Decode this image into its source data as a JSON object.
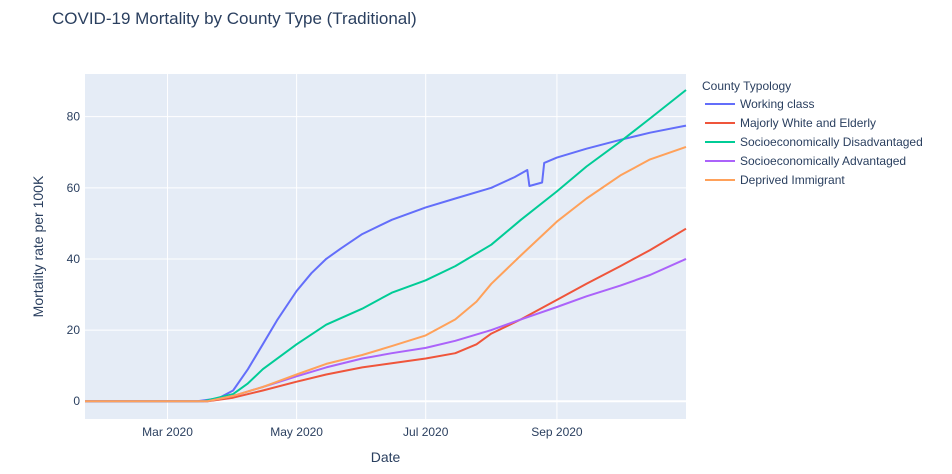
{
  "chart_data": {
    "type": "line",
    "title": "COVID-19 Mortality by County Type (Traditional)",
    "xlabel": "Date",
    "ylabel": "Mortality rate per 100K",
    "x_range": [
      "2020-01-22",
      "2020-11-01"
    ],
    "ylim": [
      -5,
      92
    ],
    "x_ticks": [
      {
        "date": "2020-03-01",
        "label": "Mar 2020"
      },
      {
        "date": "2020-05-01",
        "label": "May 2020"
      },
      {
        "date": "2020-07-01",
        "label": "Jul 2020"
      },
      {
        "date": "2020-09-01",
        "label": "Sep 2020"
      }
    ],
    "y_ticks": [
      0,
      20,
      40,
      60,
      80
    ],
    "grid": true,
    "legend": {
      "title": "County Typology",
      "placement": "right"
    },
    "series": [
      {
        "name": "Working class",
        "color": "#636efa",
        "points": [
          [
            "2020-01-22",
            0
          ],
          [
            "2020-03-15",
            0
          ],
          [
            "2020-03-25",
            0.8
          ],
          [
            "2020-04-01",
            3
          ],
          [
            "2020-04-08",
            9
          ],
          [
            "2020-04-15",
            16
          ],
          [
            "2020-04-22",
            23
          ],
          [
            "2020-05-01",
            31
          ],
          [
            "2020-05-08",
            36
          ],
          [
            "2020-05-15",
            40
          ],
          [
            "2020-05-22",
            43
          ],
          [
            "2020-06-01",
            47
          ],
          [
            "2020-06-15",
            51
          ],
          [
            "2020-07-01",
            54.5
          ],
          [
            "2020-07-15",
            57
          ],
          [
            "2020-08-01",
            60
          ],
          [
            "2020-08-12",
            63
          ],
          [
            "2020-08-18",
            65
          ],
          [
            "2020-08-19",
            60.5
          ],
          [
            "2020-08-25",
            61.5
          ],
          [
            "2020-08-26",
            67
          ],
          [
            "2020-09-01",
            68.5
          ],
          [
            "2020-09-15",
            71
          ],
          [
            "2020-10-01",
            73.5
          ],
          [
            "2020-10-15",
            75.5
          ],
          [
            "2020-11-01",
            77.5
          ]
        ]
      },
      {
        "name": "Majorly White and Elderly",
        "color": "#ef553b",
        "points": [
          [
            "2020-01-22",
            0
          ],
          [
            "2020-03-20",
            0
          ],
          [
            "2020-04-01",
            1
          ],
          [
            "2020-04-15",
            3
          ],
          [
            "2020-05-01",
            5.5
          ],
          [
            "2020-05-15",
            7.5
          ],
          [
            "2020-06-01",
            9.5
          ],
          [
            "2020-06-15",
            10.7
          ],
          [
            "2020-07-01",
            12
          ],
          [
            "2020-07-15",
            13.5
          ],
          [
            "2020-07-25",
            16
          ],
          [
            "2020-08-01",
            19
          ],
          [
            "2020-08-15",
            23
          ],
          [
            "2020-09-01",
            28.5
          ],
          [
            "2020-09-15",
            33
          ],
          [
            "2020-10-01",
            38
          ],
          [
            "2020-10-15",
            42.5
          ],
          [
            "2020-11-01",
            48.5
          ]
        ]
      },
      {
        "name": "Socioeconomically Disadvantaged",
        "color": "#00cc96",
        "points": [
          [
            "2020-01-22",
            0
          ],
          [
            "2020-03-18",
            0
          ],
          [
            "2020-04-01",
            2
          ],
          [
            "2020-04-08",
            5
          ],
          [
            "2020-04-15",
            9
          ],
          [
            "2020-05-01",
            16
          ],
          [
            "2020-05-15",
            21.5
          ],
          [
            "2020-06-01",
            26
          ],
          [
            "2020-06-15",
            30.5
          ],
          [
            "2020-07-01",
            34
          ],
          [
            "2020-07-15",
            38
          ],
          [
            "2020-08-01",
            44
          ],
          [
            "2020-08-15",
            51
          ],
          [
            "2020-09-01",
            59
          ],
          [
            "2020-09-15",
            66
          ],
          [
            "2020-10-01",
            73
          ],
          [
            "2020-10-15",
            79.5
          ],
          [
            "2020-11-01",
            87.5
          ]
        ]
      },
      {
        "name": "Socioeconomically Advantaged",
        "color": "#ab63fa",
        "points": [
          [
            "2020-01-22",
            0
          ],
          [
            "2020-03-20",
            0
          ],
          [
            "2020-04-01",
            1.5
          ],
          [
            "2020-04-15",
            4
          ],
          [
            "2020-05-01",
            7
          ],
          [
            "2020-05-15",
            9.5
          ],
          [
            "2020-06-01",
            12
          ],
          [
            "2020-06-15",
            13.5
          ],
          [
            "2020-07-01",
            15
          ],
          [
            "2020-07-15",
            17
          ],
          [
            "2020-08-01",
            20
          ],
          [
            "2020-08-15",
            23
          ],
          [
            "2020-09-01",
            26.5
          ],
          [
            "2020-09-15",
            29.5
          ],
          [
            "2020-10-01",
            32.5
          ],
          [
            "2020-10-15",
            35.5
          ],
          [
            "2020-11-01",
            40
          ]
        ]
      },
      {
        "name": "Deprived Immigrant",
        "color": "#ffa15a",
        "points": [
          [
            "2020-01-22",
            0
          ],
          [
            "2020-03-20",
            0
          ],
          [
            "2020-04-01",
            1.5
          ],
          [
            "2020-04-15",
            4
          ],
          [
            "2020-05-01",
            7.5
          ],
          [
            "2020-05-15",
            10.5
          ],
          [
            "2020-06-01",
            13
          ],
          [
            "2020-06-15",
            15.5
          ],
          [
            "2020-07-01",
            18.5
          ],
          [
            "2020-07-15",
            23
          ],
          [
            "2020-07-25",
            28
          ],
          [
            "2020-08-01",
            33
          ],
          [
            "2020-08-15",
            41
          ],
          [
            "2020-09-01",
            50.5
          ],
          [
            "2020-09-15",
            57
          ],
          [
            "2020-10-01",
            63.5
          ],
          [
            "2020-10-15",
            68
          ],
          [
            "2020-11-01",
            71.5
          ]
        ]
      }
    ]
  }
}
